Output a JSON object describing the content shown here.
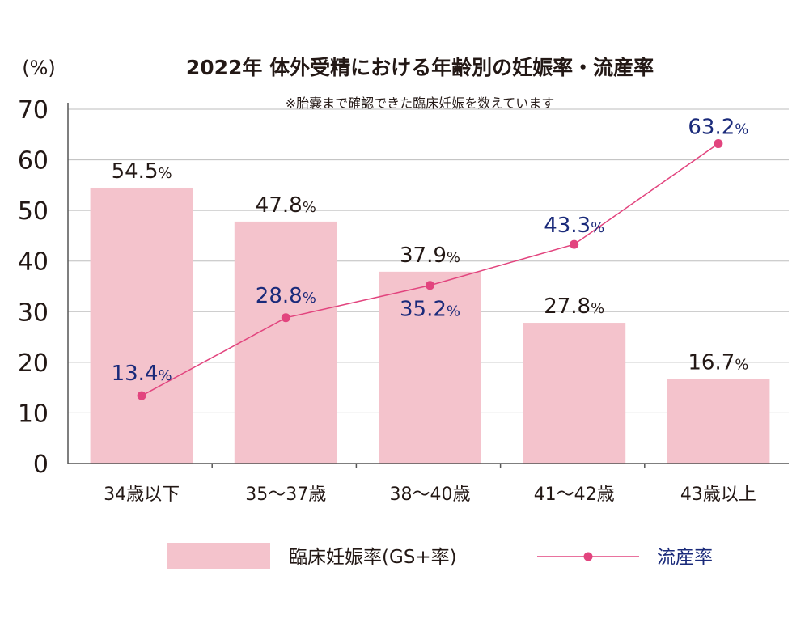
{
  "chart_data": {
    "type": "bar",
    "title": "2022年 体外受精における年齢別の妊娠率・流産率",
    "subtitle": "※胎嚢まで確認できた臨床妊娠を数えています",
    "ylabel": "(%)",
    "ylim": [
      0,
      70
    ],
    "yticks": [
      "0",
      "10",
      "20",
      "30",
      "40",
      "50",
      "60",
      "70"
    ],
    "grid": true,
    "legend_position": "bottom",
    "categories": [
      "34歳以下",
      "35〜37歳",
      "38〜40歳",
      "41〜42歳",
      "43歳以上"
    ],
    "series": [
      {
        "name": "臨床妊娠率(GS+率)",
        "type": "bar",
        "color": "#f4c3cc",
        "label_color": "#231815",
        "values": [
          54.5,
          47.8,
          37.9,
          27.8,
          16.7
        ],
        "labels": [
          "54.5",
          "47.8",
          "37.9",
          "27.8",
          "16.7"
        ]
      },
      {
        "name": "流産率",
        "type": "line",
        "color": "#e2447e",
        "label_color": "#1a2a7a",
        "values": [
          13.4,
          28.8,
          35.2,
          43.3,
          63.2
        ],
        "labels": [
          "13.4",
          "28.8",
          "35.2",
          "43.3",
          "63.2"
        ]
      }
    ],
    "unit_suffix": "%"
  }
}
